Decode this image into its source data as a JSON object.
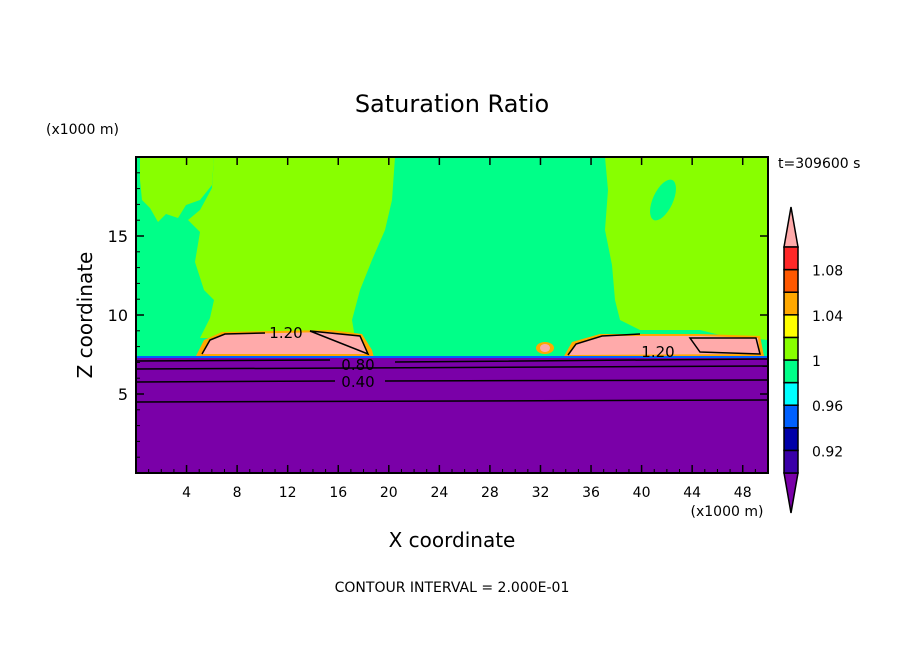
{
  "chart_data": {
    "type": "heatmap",
    "title": "Saturation Ratio",
    "xlabel": "X coordinate",
    "ylabel": "Z coordinate",
    "x_units": "(x1000 m)",
    "y_units": "(x1000 m)",
    "xlim": [
      0,
      50
    ],
    "ylim": [
      0,
      20
    ],
    "xticks": [
      4,
      8,
      12,
      16,
      20,
      24,
      28,
      32,
      36,
      40,
      44,
      48
    ],
    "yticks": [
      5,
      10,
      15
    ],
    "time_label": "t=309600 s",
    "footer": "CONTOUR INTERVAL = 2.000E-01",
    "contour_labels": [
      {
        "text": "1.20",
        "x": 13.5,
        "z": 8.9
      },
      {
        "text": "1.20",
        "x": 41.3,
        "z": 7.7
      },
      {
        "text": "0.80",
        "x": 17.5,
        "z": 6.9
      },
      {
        "text": "0.40",
        "x": 17.5,
        "z": 5.8
      }
    ],
    "colorbar": {
      "levels": [
        0.9,
        0.92,
        0.94,
        0.96,
        0.98,
        1.0,
        1.02,
        1.04,
        1.06,
        1.08,
        1.1
      ],
      "tick_labels": [
        "1.08",
        "1.04",
        "1",
        "0.96",
        "0.92"
      ],
      "colors": [
        "#7a00a8",
        "#3a00a8",
        "#0000a8",
        "#0060ff",
        "#00ffff",
        "#00ff88",
        "#88ff00",
        "#ffff00",
        "#ffa800",
        "#ff5800",
        "#ff2828",
        "#ffaaaa"
      ]
    }
  }
}
